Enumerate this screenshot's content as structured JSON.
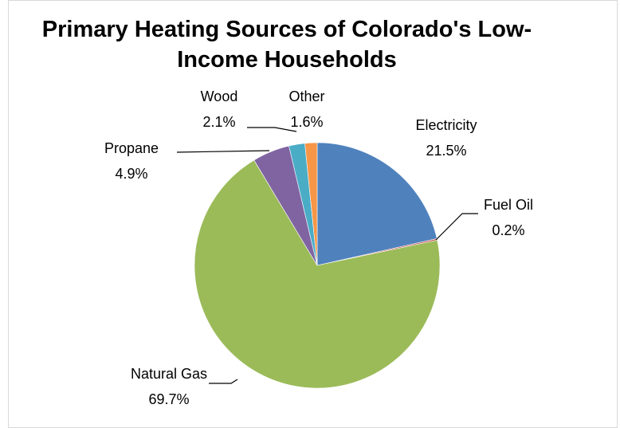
{
  "chart_data": {
    "type": "pie",
    "title": "Primary Heating Sources of Colorado's Low-Income Households",
    "categories": [
      "Electricity",
      "Fuel Oil",
      "Natural Gas",
      "Propane",
      "Wood",
      "Other"
    ],
    "values": [
      21.5,
      0.2,
      69.7,
      4.9,
      2.1,
      1.6
    ],
    "value_labels": [
      "21.5%",
      "0.2%",
      "69.7%",
      "4.9%",
      "2.1%",
      "1.6%"
    ],
    "colors": [
      "#4f81bd",
      "#c0504d",
      "#9bbb59",
      "#8064a2",
      "#4bacc6",
      "#f79646"
    ]
  }
}
